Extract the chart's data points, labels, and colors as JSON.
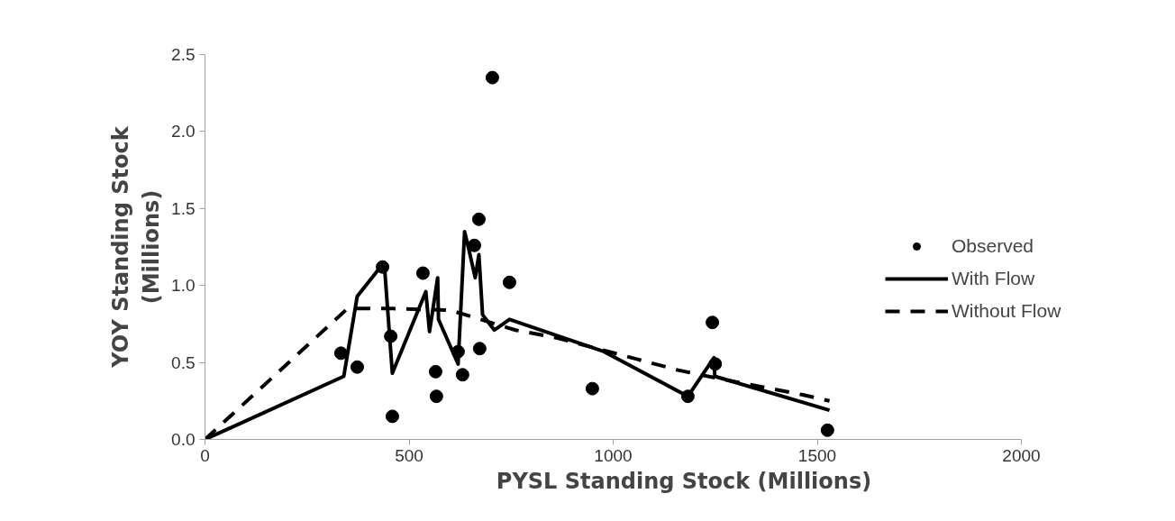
{
  "chart_data": {
    "type": "scatter",
    "xlabel": "PYSL Standing Stock (Millions)",
    "ylabel": "YOY Standing Stock\n(Millions)",
    "xlim": [
      0,
      2000
    ],
    "xticks": [
      0,
      500,
      1000,
      1500,
      2000
    ],
    "ylim": [
      0,
      2.5
    ],
    "yticks": [
      {
        "value": 0,
        "label": "0.0"
      },
      {
        "value": 0.5,
        "label": "0.5"
      },
      {
        "value": 1,
        "label": "1.0"
      },
      {
        "value": 1.5,
        "label": "1.5"
      },
      {
        "value": 2,
        "label": "2.0"
      },
      {
        "value": 2.5,
        "label": "2.5"
      }
    ],
    "grid": false,
    "legend": "right",
    "series": [
      {
        "name": "Observed",
        "marker": "circle",
        "color": "#000000",
        "x": [
          333,
          373,
          435,
          455,
          459,
          534,
          565,
          567,
          620,
          631,
          660,
          671,
          673,
          704,
          746,
          949,
          1183,
          1243,
          1250,
          1525
        ],
        "values": [
          0.56,
          0.47,
          1.12,
          0.67,
          0.15,
          1.08,
          0.44,
          0.28,
          0.57,
          0.42,
          1.26,
          1.43,
          0.59,
          2.35,
          1.02,
          0.33,
          0.28,
          0.76,
          0.49,
          0.06
        ]
      },
      {
        "name": "With Flow",
        "type": "line",
        "line_style": "solid",
        "color": "#000000",
        "x": [
          0,
          340,
          373,
          439,
          459,
          541,
          550,
          570,
          572,
          620,
          636,
          645,
          662,
          671,
          680,
          709,
          746,
          978,
          1183,
          1247,
          1249,
          1530
        ],
        "values": [
          0,
          0.41,
          0.93,
          1.15,
          0.43,
          0.96,
          0.7,
          1.05,
          0.78,
          0.49,
          1.35,
          1.25,
          1.05,
          1.2,
          0.81,
          0.71,
          0.78,
          0.57,
          0.28,
          0.53,
          0.41,
          0.19
        ]
      },
      {
        "name": "Without Flow",
        "type": "line",
        "line_style": "dashed",
        "color": "#000000",
        "x": [
          0,
          349,
          460,
          600,
          761,
          861,
          1060,
          1159,
          1250,
          1464,
          1530
        ],
        "values": [
          0,
          0.85,
          0.85,
          0.84,
          0.71,
          0.66,
          0.52,
          0.45,
          0.4,
          0.29,
          0.25
        ]
      }
    ]
  }
}
